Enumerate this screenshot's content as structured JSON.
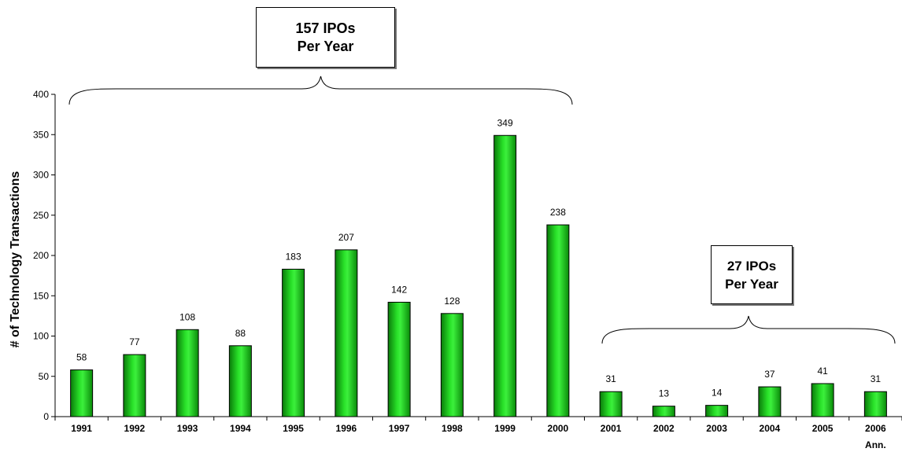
{
  "chart_data": {
    "type": "bar",
    "categories": [
      "1991",
      "1992",
      "1993",
      "1994",
      "1995",
      "1996",
      "1997",
      "1998",
      "1999",
      "2000",
      "2001",
      "2002",
      "2003",
      "2004",
      "2005",
      "2006"
    ],
    "category_sublabels": [
      "",
      "",
      "",
      "",
      "",
      "",
      "",
      "",
      "",
      "",
      "",
      "",
      "",
      "",
      "",
      "Ann."
    ],
    "values": [
      58,
      77,
      108,
      88,
      183,
      207,
      142,
      128,
      349,
      238,
      31,
      13,
      14,
      37,
      41,
      31
    ],
    "ylabel": "# of Technology Transactions",
    "xlabel": "",
    "ylim": [
      0,
      400
    ],
    "yticks": [
      0,
      50,
      100,
      150,
      200,
      250,
      300,
      350,
      400
    ],
    "grid": false,
    "legend": "none",
    "bar_color": "#1ec81e",
    "bar_stroke": "#000000",
    "annotations": [
      {
        "line1": "157 IPOs",
        "line2": "Per Year",
        "spans": [
          "1991",
          "2000"
        ]
      },
      {
        "line1": "27 IPOs",
        "line2": "Per Year",
        "spans": [
          "2001",
          "2006"
        ]
      }
    ]
  }
}
